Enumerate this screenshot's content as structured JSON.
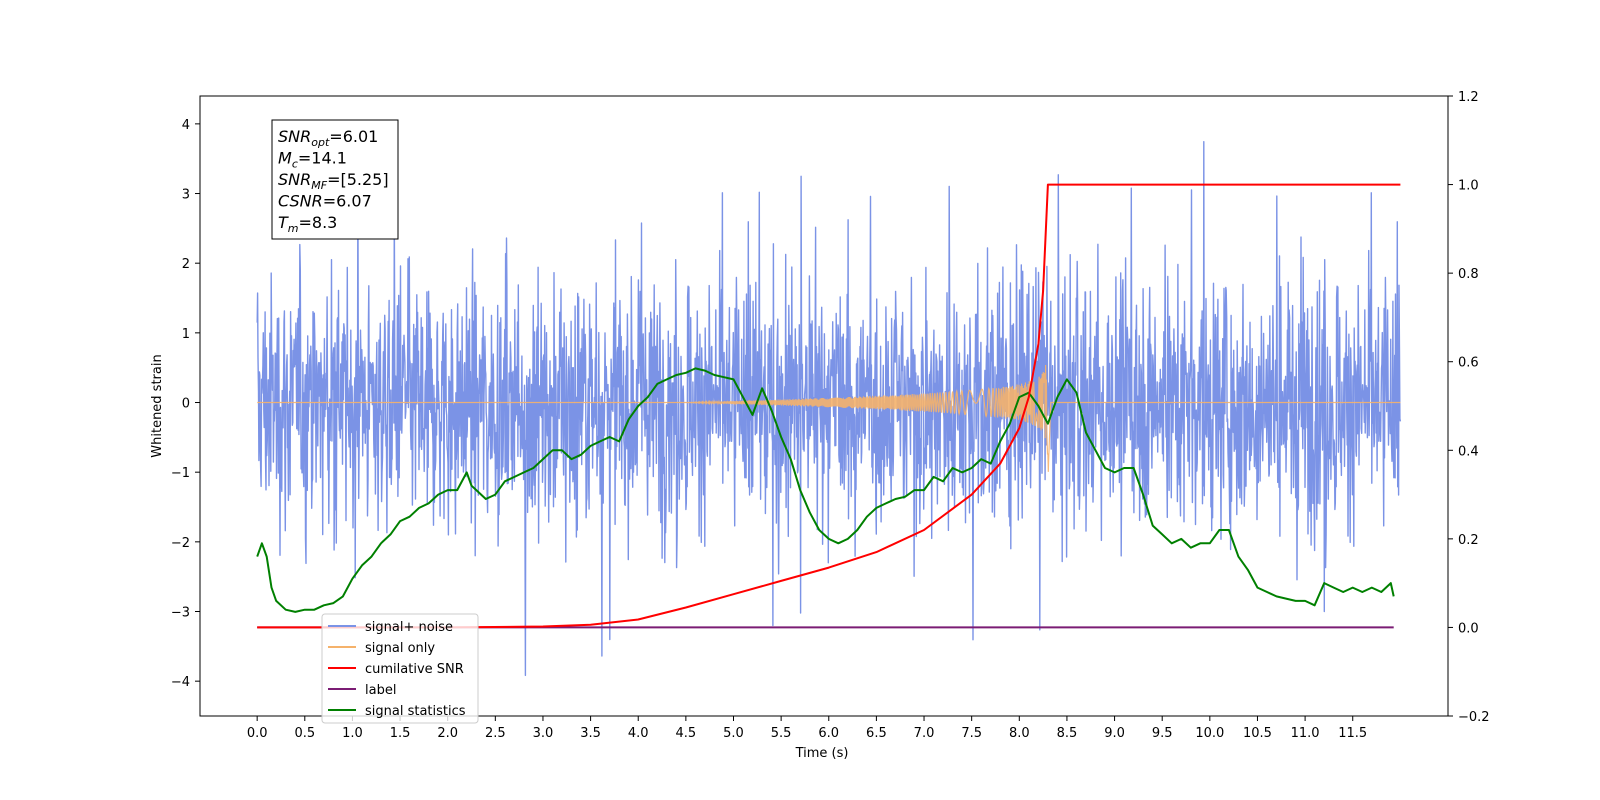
{
  "chart_data": {
    "type": "line",
    "xlabel": "Time (s)",
    "ylabel": "Whitened strain",
    "xlim": [
      -0.6,
      12.5
    ],
    "ylim": [
      -4.5,
      4.4
    ],
    "ylim_right": [
      -0.2,
      1.2
    ],
    "x_ticks": [
      0.0,
      0.5,
      1.0,
      1.5,
      2.0,
      2.5,
      3.0,
      3.5,
      4.0,
      4.5,
      5.0,
      5.5,
      6.0,
      6.5,
      7.0,
      7.5,
      8.0,
      8.5,
      9.0,
      9.5,
      10.0,
      10.5,
      11.0,
      11.5
    ],
    "x_tick_labels": [
      "0.0",
      "0.5",
      "1.0",
      "1.5",
      "2.0",
      "2.5",
      "3.0",
      "3.5",
      "4.0",
      "4.5",
      "5.0",
      "5.5",
      "6.0",
      "6.5",
      "7.0",
      "7.5",
      "8.0",
      "8.5",
      "9.0",
      "9.5",
      "10.0",
      "10.5",
      "11.0",
      "11.5"
    ],
    "y_ticks": [
      -4,
      -3,
      -2,
      -1,
      0,
      1,
      2,
      3,
      4
    ],
    "y_tick_labels": [
      "−4",
      "−3",
      "−2",
      "−1",
      "0",
      "1",
      "2",
      "3",
      "4"
    ],
    "y_right_ticks": [
      -0.2,
      0.0,
      0.2,
      0.4,
      0.6,
      0.8,
      1.0,
      1.2
    ],
    "y_right_tick_labels": [
      "−0.2",
      "0.0",
      "0.2",
      "0.4",
      "0.6",
      "0.8",
      "1.0",
      "1.2"
    ],
    "grid": false,
    "legend_position": "lower-left",
    "annotation": [
      {
        "main": "SNR",
        "sub": "opt",
        "value": "=6.01"
      },
      {
        "main": "M",
        "sub": "c",
        "value": "=14.1"
      },
      {
        "main": "SNR",
        "sub": "MF",
        "value": "=[5.25]"
      },
      {
        "main": "CSNR",
        "sub": "",
        "value": "=6.07"
      },
      {
        "main": "T",
        "sub": "m",
        "value": "=8.3"
      }
    ],
    "series": [
      {
        "name": "signal+ noise",
        "axis": "left",
        "color": "#7b93e6",
        "x_range": [
          0.0,
          12.0
        ],
        "amplitude_typical": 1.3,
        "y_max": 4.0,
        "y_min": -4.1
      },
      {
        "name": "signal only",
        "axis": "left",
        "color": "#f5b26b",
        "chirp_start": 4.5,
        "merger_time": 8.3,
        "peak_amplitude": 0.85
      },
      {
        "name": "cumilative SNR",
        "axis": "right",
        "color": "#ff0000",
        "x": [
          0.0,
          2.0,
          3.0,
          3.5,
          4.0,
          4.5,
          5.0,
          5.5,
          6.0,
          6.5,
          7.0,
          7.5,
          7.8,
          8.0,
          8.1,
          8.2,
          8.25,
          8.3,
          8.5,
          9.0,
          10.0,
          11.0,
          11.5,
          12.0
        ],
        "y": [
          0.0,
          0.0,
          0.002,
          0.006,
          0.018,
          0.045,
          0.075,
          0.105,
          0.135,
          0.17,
          0.22,
          0.3,
          0.37,
          0.45,
          0.52,
          0.64,
          0.76,
          1.0,
          1.0,
          1.0,
          1.0,
          1.0,
          1.0,
          1.0
        ]
      },
      {
        "name": "label",
        "axis": "right",
        "color": "#7b1c74",
        "x": [
          0.0,
          11.93
        ],
        "y": [
          0.0,
          0.0
        ]
      },
      {
        "name": "signal statistics",
        "axis": "right",
        "color": "#008000",
        "x": [
          0.0,
          0.05,
          0.1,
          0.15,
          0.2,
          0.3,
          0.4,
          0.5,
          0.6,
          0.7,
          0.8,
          0.9,
          1.0,
          1.1,
          1.2,
          1.3,
          1.4,
          1.5,
          1.6,
          1.7,
          1.8,
          1.9,
          2.0,
          2.1,
          2.2,
          2.25,
          2.3,
          2.4,
          2.5,
          2.6,
          2.7,
          2.8,
          2.9,
          3.0,
          3.1,
          3.2,
          3.3,
          3.4,
          3.5,
          3.6,
          3.7,
          3.8,
          3.9,
          4.0,
          4.1,
          4.2,
          4.3,
          4.4,
          4.5,
          4.6,
          4.7,
          4.8,
          4.9,
          5.0,
          5.1,
          5.2,
          5.3,
          5.4,
          5.5,
          5.6,
          5.7,
          5.8,
          5.9,
          6.0,
          6.1,
          6.2,
          6.3,
          6.4,
          6.5,
          6.6,
          6.7,
          6.8,
          6.9,
          7.0,
          7.1,
          7.2,
          7.3,
          7.4,
          7.5,
          7.6,
          7.7,
          7.8,
          7.9,
          8.0,
          8.1,
          8.2,
          8.3,
          8.4,
          8.5,
          8.6,
          8.7,
          8.8,
          8.9,
          9.0,
          9.1,
          9.2,
          9.3,
          9.4,
          9.5,
          9.6,
          9.7,
          9.8,
          9.9,
          10.0,
          10.1,
          10.2,
          10.3,
          10.4,
          10.5,
          10.6,
          10.7,
          10.8,
          10.9,
          11.0,
          11.1,
          11.2,
          11.3,
          11.4,
          11.5,
          11.6,
          11.7,
          11.8,
          11.9,
          11.93
        ],
        "y": [
          0.16,
          0.19,
          0.16,
          0.09,
          0.06,
          0.04,
          0.035,
          0.04,
          0.04,
          0.05,
          0.055,
          0.07,
          0.11,
          0.14,
          0.16,
          0.19,
          0.21,
          0.24,
          0.25,
          0.27,
          0.28,
          0.3,
          0.31,
          0.31,
          0.35,
          0.32,
          0.31,
          0.29,
          0.3,
          0.33,
          0.34,
          0.35,
          0.36,
          0.38,
          0.4,
          0.4,
          0.38,
          0.39,
          0.41,
          0.42,
          0.43,
          0.42,
          0.47,
          0.5,
          0.52,
          0.55,
          0.56,
          0.57,
          0.575,
          0.585,
          0.58,
          0.57,
          0.565,
          0.56,
          0.52,
          0.48,
          0.54,
          0.49,
          0.43,
          0.38,
          0.31,
          0.26,
          0.22,
          0.2,
          0.19,
          0.2,
          0.22,
          0.25,
          0.27,
          0.28,
          0.29,
          0.295,
          0.31,
          0.31,
          0.34,
          0.33,
          0.36,
          0.35,
          0.36,
          0.38,
          0.37,
          0.42,
          0.46,
          0.52,
          0.53,
          0.5,
          0.46,
          0.52,
          0.56,
          0.53,
          0.44,
          0.4,
          0.36,
          0.35,
          0.36,
          0.36,
          0.3,
          0.23,
          0.21,
          0.19,
          0.2,
          0.18,
          0.19,
          0.19,
          0.22,
          0.22,
          0.16,
          0.13,
          0.09,
          0.08,
          0.07,
          0.065,
          0.06,
          0.06,
          0.05,
          0.1,
          0.09,
          0.08,
          0.09,
          0.08,
          0.09,
          0.08,
          0.1,
          0.07
        ]
      }
    ]
  }
}
